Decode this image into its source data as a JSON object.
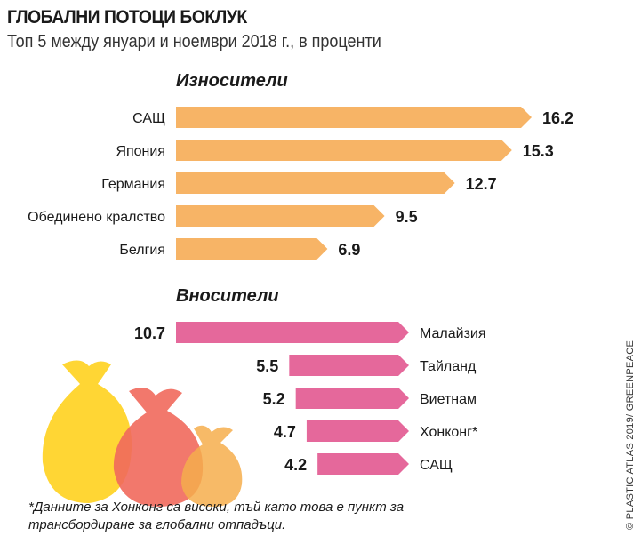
{
  "title": "ГЛОБАЛНИ ПОТОЦИ БОКЛУК",
  "subtitle": "Топ 5 между януари и ноември 2018 г., в проценти",
  "credit": "© PLASTIC ATLAS 2019/ GREENPEACE",
  "footnote": "*Данните за Хонконг са високи, тъй като това е пункт за трансбордиране за глобални отпадъци.",
  "colors": {
    "exporters": "#f7b466",
    "importers": "#e5689b"
  },
  "chart_data": [
    {
      "type": "bar",
      "title": "Износители",
      "categories": [
        "САЩ",
        "Япония",
        "Германия",
        "Обединено кралство",
        "Белгия"
      ],
      "values": [
        16.2,
        15.3,
        12.7,
        9.5,
        6.9
      ],
      "value_labels": [
        "16.2",
        "15.3",
        "12.7",
        "9.5",
        "6.9"
      ]
    },
    {
      "type": "bar",
      "title": "Вносители",
      "categories": [
        "Малайзия",
        "Тайланд",
        "Виетнам",
        "Хонконг*",
        "САЩ"
      ],
      "values": [
        10.7,
        5.5,
        5.2,
        4.7,
        4.2
      ],
      "value_labels": [
        "10.7",
        "5.5",
        "5.2",
        "4.7",
        "4.2"
      ]
    }
  ]
}
